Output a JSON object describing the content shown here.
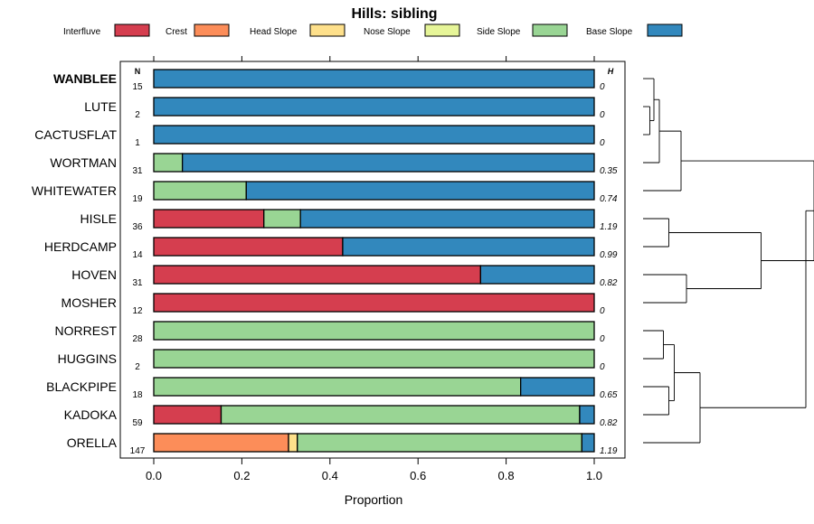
{
  "chart_data": {
    "type": "bar",
    "orientation": "horizontal-stacked",
    "title": "Hills: sibling",
    "xlabel": "Proportion",
    "xlim": [
      0,
      1
    ],
    "xticks": [
      "0.0",
      "0.2",
      "0.4",
      "0.6",
      "0.8",
      "1.0"
    ],
    "xtick_values": [
      0,
      0.2,
      0.4,
      0.6,
      0.8,
      1.0
    ],
    "n_header": "N",
    "h_header": "H",
    "legend": [
      {
        "name": "Interfluve",
        "color": "#d53e4f"
      },
      {
        "name": "Crest",
        "color": "#fc8d59"
      },
      {
        "name": "Head Slope",
        "color": "#fee08b"
      },
      {
        "name": "Nose Slope",
        "color": "#e6f598"
      },
      {
        "name": "Side Slope",
        "color": "#99d594"
      },
      {
        "name": "Base Slope",
        "color": "#3288bd"
      }
    ],
    "rows": [
      {
        "label": "WANBLEE",
        "bold": true,
        "n": "15",
        "h": "0",
        "values": [
          0,
          0,
          0,
          0,
          0,
          1.0
        ]
      },
      {
        "label": "LUTE",
        "bold": false,
        "n": "2",
        "h": "0",
        "values": [
          0,
          0,
          0,
          0,
          0,
          1.0
        ]
      },
      {
        "label": "CACTUSFLAT",
        "bold": false,
        "n": "1",
        "h": "0",
        "values": [
          0,
          0,
          0,
          0,
          0,
          1.0
        ]
      },
      {
        "label": "WORTMAN",
        "bold": false,
        "n": "31",
        "h": "0.35",
        "values": [
          0,
          0,
          0,
          0,
          0.065,
          0.935
        ]
      },
      {
        "label": "WHITEWATER",
        "bold": false,
        "n": "19",
        "h": "0.74",
        "values": [
          0,
          0,
          0,
          0,
          0.21,
          0.79
        ]
      },
      {
        "label": "HISLE",
        "bold": false,
        "n": "36",
        "h": "1.19",
        "values": [
          0.25,
          0,
          0,
          0,
          0.083,
          0.667
        ]
      },
      {
        "label": "HERDCAMP",
        "bold": false,
        "n": "14",
        "h": "0.99",
        "values": [
          0.429,
          0,
          0,
          0,
          0,
          0.571
        ]
      },
      {
        "label": "HOVEN",
        "bold": false,
        "n": "31",
        "h": "0.82",
        "values": [
          0.742,
          0,
          0,
          0,
          0,
          0.258
        ]
      },
      {
        "label": "MOSHER",
        "bold": false,
        "n": "12",
        "h": "0",
        "values": [
          1.0,
          0,
          0,
          0,
          0,
          0
        ]
      },
      {
        "label": "NORREST",
        "bold": false,
        "n": "28",
        "h": "0",
        "values": [
          0,
          0,
          0,
          0,
          1.0,
          0
        ]
      },
      {
        "label": "HUGGINS",
        "bold": false,
        "n": "2",
        "h": "0",
        "values": [
          0,
          0,
          0,
          0,
          1.0,
          0
        ]
      },
      {
        "label": "BLACKPIPE",
        "bold": false,
        "n": "18",
        "h": "0.65",
        "values": [
          0,
          0,
          0,
          0,
          0.833,
          0.167
        ]
      },
      {
        "label": "KADOKA",
        "bold": false,
        "n": "59",
        "h": "0.82",
        "values": [
          0.153,
          0,
          0,
          0,
          0.814,
          0.033
        ]
      },
      {
        "label": "ORELLA",
        "bold": false,
        "n": "147",
        "h": "1.19",
        "values": [
          0,
          0.306,
          0.02,
          0,
          0.646,
          0.028
        ]
      }
    ],
    "dendrogram": {
      "leaves": [
        "WANBLEE",
        "LUTE",
        "CACTUSFLAT",
        "WORTMAN",
        "WHITEWATER",
        "HISLE",
        "HERDCAMP",
        "HOVEN",
        "MOSHER",
        "NORREST",
        "HUGGINS",
        "BLACKPIPE",
        "KADOKA",
        "ORELLA"
      ],
      "merges": [
        [
          1,
          2,
          0.05
        ],
        [
          0,
          "c0",
          0.08
        ],
        [
          3,
          "c1",
          0.12
        ],
        [
          4,
          "c2",
          0.28
        ],
        [
          5,
          6,
          0.19
        ],
        [
          7,
          8,
          0.32
        ],
        [
          "c4",
          "c5",
          0.87
        ],
        [
          "c3",
          "c6",
          1.26
        ],
        [
          9,
          10,
          0.15
        ],
        [
          11,
          12,
          0.19
        ],
        [
          "c8",
          "c9",
          0.23
        ],
        [
          "c10",
          13,
          0.42
        ]
      ],
      "top_level": [
        "c7",
        "c11"
      ]
    }
  }
}
